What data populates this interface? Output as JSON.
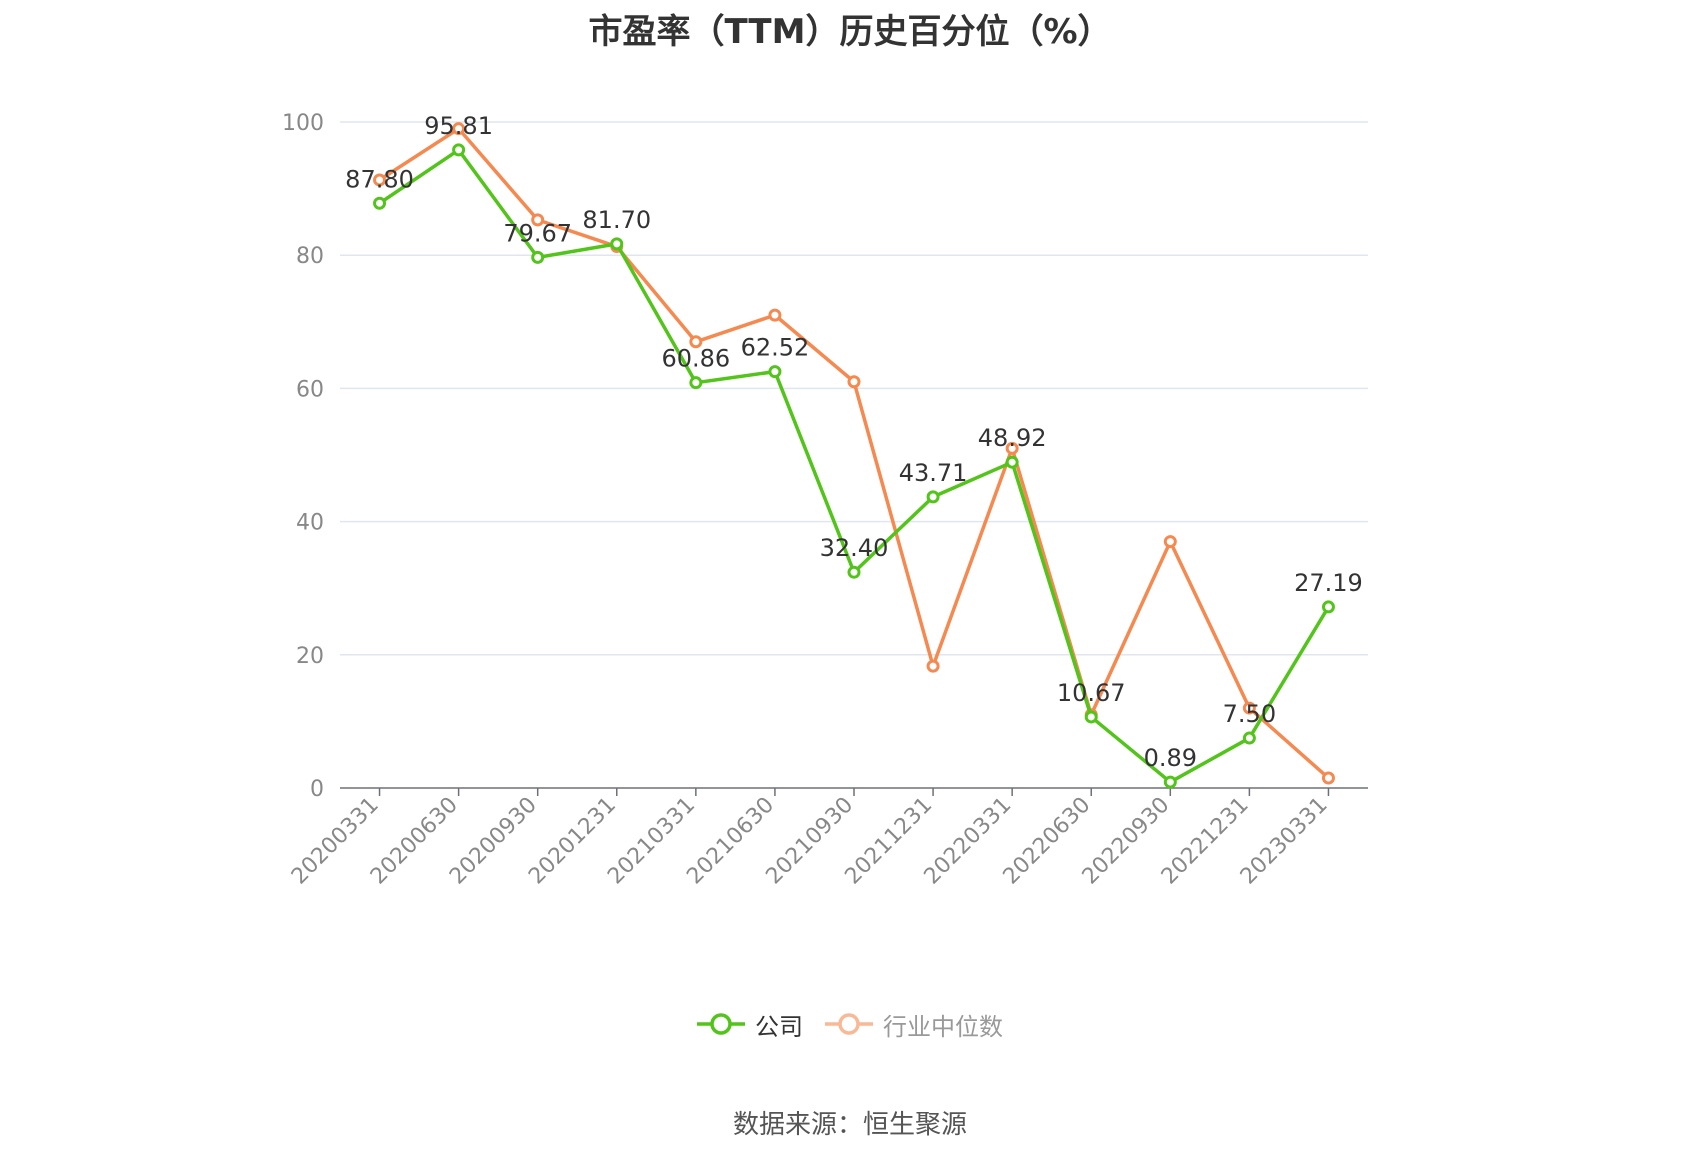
{
  "chart_data": {
    "type": "line",
    "title": "市盈率（TTM）历史百分位（%）",
    "categories": [
      "20200331",
      "20200630",
      "20200930",
      "20201231",
      "20210331",
      "20210630",
      "20210930",
      "20211231",
      "20220331",
      "20220630",
      "20220930",
      "20221231",
      "20230331"
    ],
    "series": [
      {
        "name": "公司",
        "color": "#52c41a",
        "values": [
          87.8,
          95.81,
          79.67,
          81.7,
          60.86,
          62.52,
          32.4,
          43.71,
          48.92,
          10.67,
          0.89,
          7.5,
          27.19
        ],
        "labels": [
          "87.80",
          "95.81",
          "79.67",
          "81.70",
          "60.86",
          "62.52",
          "32.40",
          "43.71",
          "48.92",
          "10.67",
          "0.89",
          "7.50",
          "27.19"
        ]
      },
      {
        "name": "行业中位数",
        "color": "#f5894f",
        "values": [
          91.3,
          99.0,
          85.3,
          81.3,
          67.0,
          71.0,
          61.0,
          18.3,
          51.0,
          11.0,
          37.0,
          12.0,
          1.5
        ]
      }
    ],
    "ylim": [
      0,
      100
    ],
    "yticks": [
      "0",
      "20",
      "40",
      "60",
      "80",
      "100"
    ],
    "grid": true,
    "legend_position": "bottom"
  },
  "source_note": "数据来源：恒生聚源"
}
